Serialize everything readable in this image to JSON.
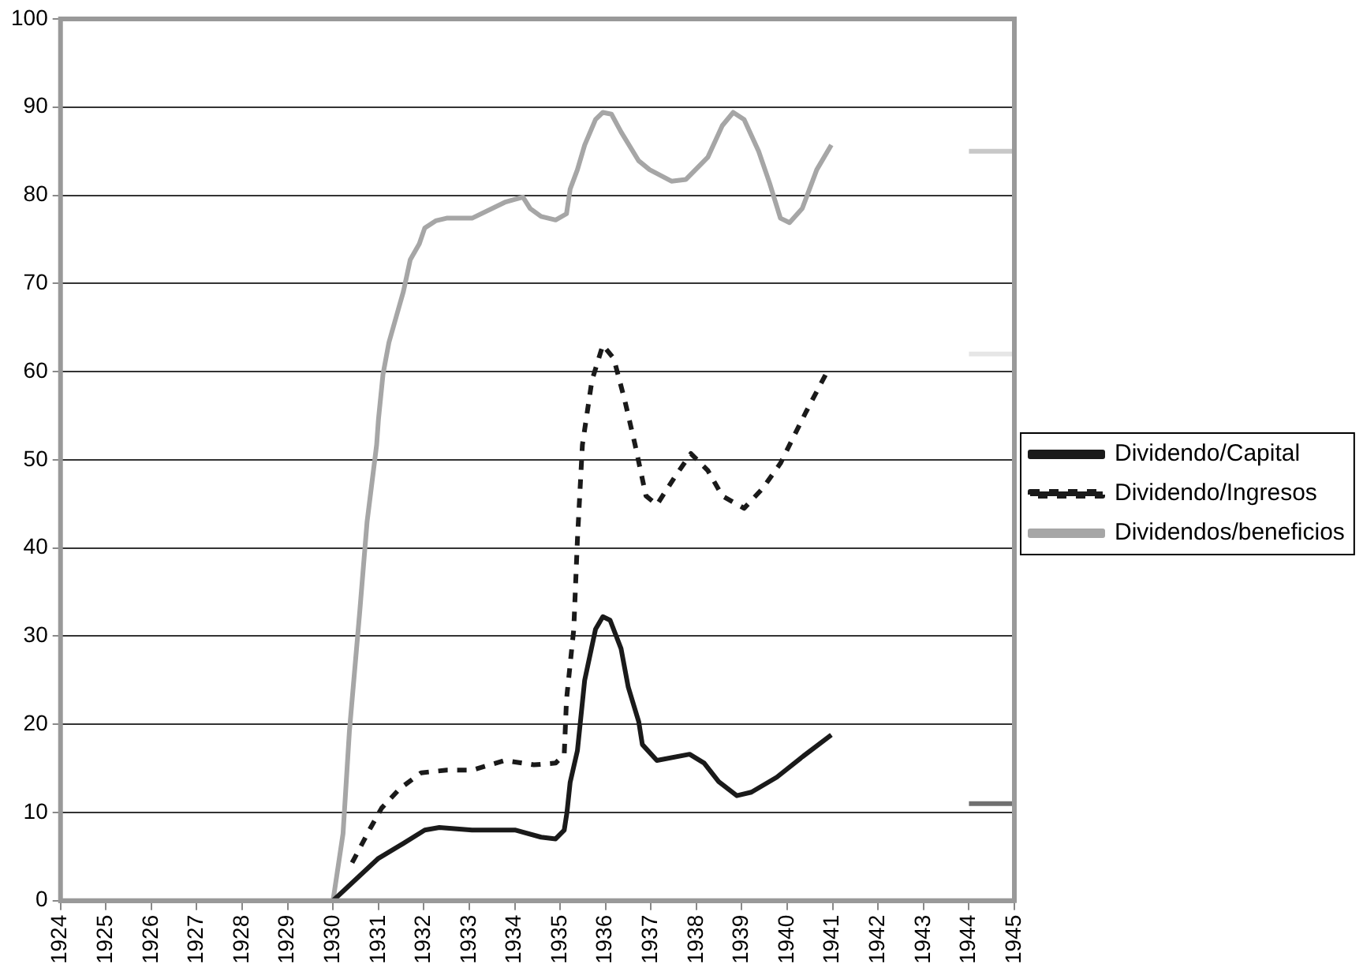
{
  "chart_data": {
    "type": "line",
    "xlim": [
      1924,
      1945
    ],
    "xticks": [
      1924,
      1925,
      1926,
      1927,
      1928,
      1929,
      1930,
      1931,
      1932,
      1933,
      1934,
      1935,
      1936,
      1937,
      1938,
      1939,
      1940,
      1941,
      1942,
      1943,
      1944,
      1945
    ],
    "ylim": [
      0,
      100
    ],
    "yticks": [
      0,
      10,
      20,
      30,
      40,
      50,
      60,
      70,
      80,
      90,
      100
    ],
    "grid": "y",
    "legend": "right",
    "marker": "none",
    "series": [
      {
        "name": "Dividendo/Capital",
        "color": "#1a1a1a",
        "line_style": "solid",
        "x": [
          1930,
          1931,
          1931.55,
          1932.02,
          1932.34,
          1933.06,
          1934.02,
          1934.58,
          1934.9,
          1935.09,
          1935.15,
          1935.22,
          1935.38,
          1935.54,
          1935.78,
          1935.94,
          1936.1,
          1936.34,
          1936.5,
          1936.73,
          1936.81,
          1937.13,
          1937.85,
          1938.17,
          1938.49,
          1938.89,
          1939.21,
          1939.77,
          1940.33,
          1940.97
        ],
        "values": [
          0,
          4.8,
          6.5,
          8,
          8.3,
          8,
          8,
          7.2,
          7,
          8,
          10,
          13.4,
          17,
          25,
          30.8,
          32.2,
          31.8,
          28.6,
          24.2,
          20.3,
          17.7,
          15.9,
          16.6,
          15.6,
          13.5,
          11.9,
          12.3,
          14,
          16.3,
          18.8
        ]
      },
      {
        "name": "Dividendo/Ingresos",
        "color": "#1a1a1a",
        "line_style": "dashed",
        "x": [
          1930.42,
          1930.83,
          1931.07,
          1931.47,
          1931.94,
          1932.5,
          1933.06,
          1933.78,
          1934.42,
          1934.9,
          1935.09,
          1935.14,
          1935.3,
          1935.38,
          1935.49,
          1935.7,
          1935.94,
          1936.18,
          1936.42,
          1936.65,
          1936.89,
          1937.13,
          1937.53,
          1937.88,
          1938.25,
          1938.57,
          1939.05,
          1939.45,
          1939.85,
          1940.41,
          1940.89
        ],
        "values": [
          4.3,
          8.3,
          10.5,
          12.7,
          14.5,
          14.8,
          14.8,
          15.9,
          15.4,
          15.6,
          16.6,
          22.8,
          30.8,
          40.9,
          51.7,
          59,
          63,
          61.5,
          56.8,
          51.7,
          45.9,
          44.9,
          48.1,
          50.7,
          48.8,
          45.9,
          44.5,
          46.7,
          49.6,
          55.4,
          60.1
        ]
      },
      {
        "name": "Dividendos/beneficios",
        "color": "#a6a6a6",
        "line_style": "solid",
        "x": [
          1930,
          1930.22,
          1930.36,
          1930.59,
          1930.75,
          1930.96,
          1931,
          1931.1,
          1931.23,
          1931.39,
          1931.55,
          1931.7,
          1931.9,
          1932.02,
          1932.26,
          1932.5,
          1933.06,
          1933.78,
          1934.18,
          1934.34,
          1934.58,
          1934.9,
          1935.14,
          1935.22,
          1935.38,
          1935.54,
          1935.78,
          1935.94,
          1936.13,
          1936.34,
          1936.73,
          1936.97,
          1937.45,
          1937.77,
          1938.25,
          1938.57,
          1938.81,
          1939.05,
          1939.37,
          1939.61,
          1939.85,
          1940.05,
          1940.33,
          1940.65,
          1940.97
        ],
        "values": [
          0,
          7.6,
          19.2,
          32.9,
          43,
          51.7,
          54.6,
          59.7,
          63.3,
          66.2,
          69.1,
          72.7,
          74.5,
          76.3,
          77.1,
          77.4,
          77.4,
          79.2,
          79.8,
          78.5,
          77.6,
          77.2,
          77.9,
          80.7,
          82.9,
          85.7,
          88.6,
          89.4,
          89.2,
          87.2,
          83.9,
          82.9,
          81.6,
          81.8,
          84.3,
          87.9,
          89.4,
          88.6,
          85,
          81.4,
          77.4,
          76.9,
          78.5,
          82.9,
          85.7
        ]
      },
      {
        "color": "#c8c8c8",
        "line_style": "solid",
        "x": [
          1944,
          1945
        ],
        "values": [
          85,
          85
        ]
      },
      {
        "color": "#e6e6e6",
        "line_style": "solid",
        "x": [
          1944,
          1945
        ],
        "values": [
          62,
          62
        ]
      },
      {
        "color": "#707070",
        "line_style": "solid",
        "x": [
          1944,
          1945
        ],
        "values": [
          11,
          11
        ]
      }
    ]
  }
}
